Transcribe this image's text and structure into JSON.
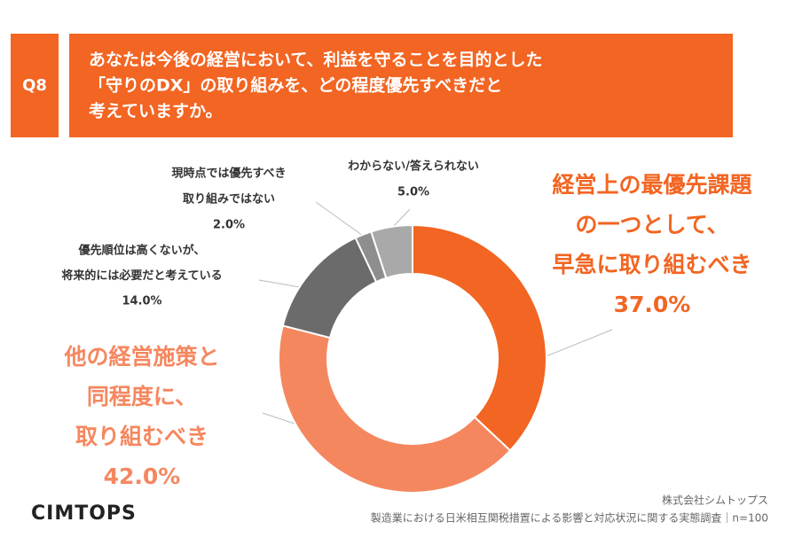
{
  "header": {
    "badge": "Q8",
    "question": [
      "あなたは今後の経営において、利益を守ることを目的とした",
      "「守りのDX」の取り組みを、どの程度優先すべきだと",
      "考えていますか。"
    ]
  },
  "chart_data": {
    "type": "pie",
    "donut": true,
    "categories": [
      [
        "経営上の最優先課題",
        "の一つとして、",
        "早急に取り組むべき"
      ],
      [
        "他の経営施策と",
        "同程度に、",
        "取り組むべき"
      ],
      [
        "優先順位は高くないが、",
        "将来的には必要だと考えている"
      ],
      [
        "現時点では優先すべき",
        "取り組みではない"
      ],
      [
        "わからない/答えられない"
      ]
    ],
    "values": [
      37.0,
      42.0,
      14.0,
      2.0,
      5.0
    ],
    "value_labels": [
      "37.0%",
      "42.0%",
      "14.0%",
      "2.0%",
      "5.0%"
    ],
    "colors": [
      "#f26522",
      "#f5875f",
      "#6b6b6b",
      "#8e8e8e",
      "#a9a9a9"
    ]
  },
  "footer": {
    "logo": "CIMTOPS",
    "company": "株式会社シムトップス",
    "source": "製造業における日米相互関税措置による影響と対応状況に関する実態調査｜n=100"
  }
}
